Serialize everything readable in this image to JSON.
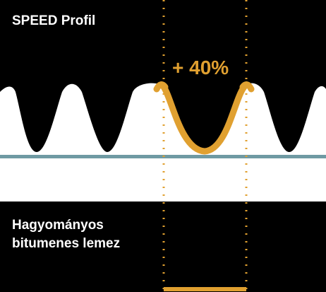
{
  "top_label": "SPEED Profil",
  "bottom_label": "Hagyományos\nbitumenes lemez",
  "increase_label": "+ 40%",
  "colors": {
    "background": "#000000",
    "profile_fill": "#ffffff",
    "highlight": "#e0a030",
    "baseline": "#6f9aa3"
  }
}
